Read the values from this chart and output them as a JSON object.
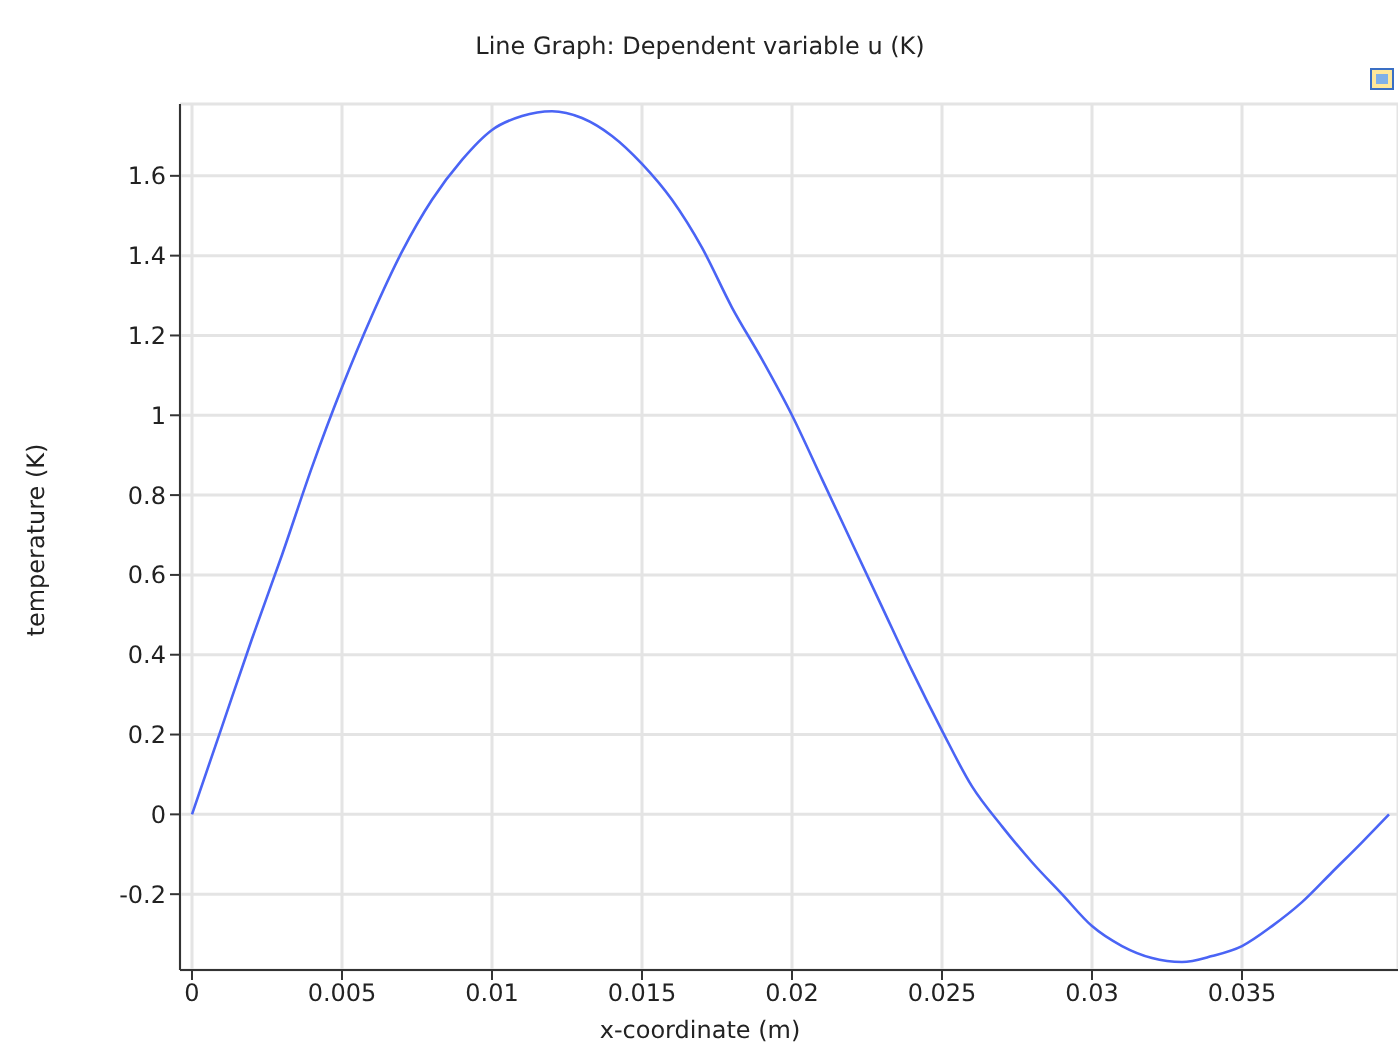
{
  "chart_data": {
    "type": "line",
    "title": "Line Graph: Dependent variable u (K)",
    "xlabel": "x-coordinate (m)",
    "ylabel": "temperature (K)",
    "x": [
      0,
      0.001,
      0.002,
      0.003,
      0.004,
      0.005,
      0.006,
      0.007,
      0.008,
      0.009,
      0.01,
      0.011,
      0.012,
      0.013,
      0.014,
      0.015,
      0.016,
      0.017,
      0.018,
      0.019,
      0.02,
      0.021,
      0.022,
      0.023,
      0.024,
      0.025,
      0.026,
      0.027,
      0.028,
      0.029,
      0.03,
      0.031,
      0.032,
      0.033,
      0.034,
      0.035,
      0.036,
      0.037,
      0.038,
      0.039,
      0.0399
    ],
    "series": [
      {
        "color": "#4a64f5",
        "values": [
          0,
          0.22,
          0.44,
          0.65,
          0.87,
          1.07,
          1.25,
          1.41,
          1.54,
          1.64,
          1.715,
          1.75,
          1.762,
          1.745,
          1.7,
          1.63,
          1.54,
          1.42,
          1.27,
          1.14,
          1.0,
          0.84,
          0.68,
          0.52,
          0.36,
          0.21,
          0.07,
          -0.03,
          -0.12,
          -0.2,
          -0.28,
          -0.33,
          -0.36,
          -0.37,
          -0.355,
          -0.33,
          -0.28,
          -0.22,
          -0.145,
          -0.07,
          0
        ]
      }
    ],
    "xlim": [
      -0.0004,
      0.0402
    ],
    "xticks": [
      0,
      0.005,
      0.01,
      0.015,
      0.02,
      0.025,
      0.03,
      0.035
    ],
    "ylim": [
      -0.39,
      1.78
    ],
    "yticks": [
      -0.2,
      0,
      0.2,
      0.4,
      0.6,
      0.8,
      1,
      1.2,
      1.4,
      1.6
    ],
    "grid": true,
    "marker": "none",
    "line_style": "solid"
  }
}
